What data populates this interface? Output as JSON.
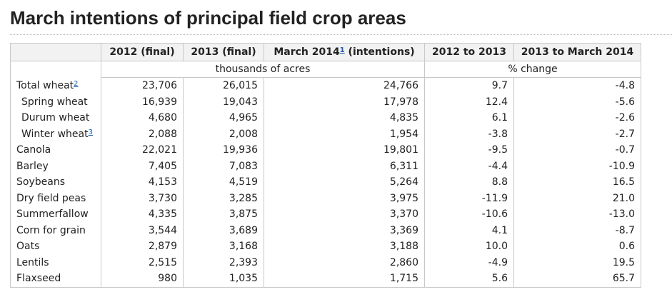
{
  "title": "March intentions of principal field crop areas",
  "columns": {
    "c2012": "2012 (final)",
    "c2013": "2013 (final)",
    "c2014_label": "March 2014",
    "c2014_note": "1",
    "c2014_suffix": " (intentions)",
    "c_change1": "2012 to 2013",
    "c_change2": "2013 to March 2014"
  },
  "units": {
    "acres": "thousands of acres",
    "pct": "% change"
  },
  "rows": [
    {
      "label": "Total wheat",
      "note": "2",
      "sub": false,
      "v2012": "23,706",
      "v2013": "26,015",
      "v2014": "24,766",
      "ch1": "9.7",
      "ch2": "-4.8"
    },
    {
      "label": "Spring wheat",
      "note": "",
      "sub": true,
      "v2012": "16,939",
      "v2013": "19,043",
      "v2014": "17,978",
      "ch1": "12.4",
      "ch2": "-5.6"
    },
    {
      "label": "Durum wheat",
      "note": "",
      "sub": true,
      "v2012": "4,680",
      "v2013": "4,965",
      "v2014": "4,835",
      "ch1": "6.1",
      "ch2": "-2.6"
    },
    {
      "label": "Winter wheat",
      "note": "3",
      "sub": true,
      "v2012": "2,088",
      "v2013": "2,008",
      "v2014": "1,954",
      "ch1": "-3.8",
      "ch2": "-2.7"
    },
    {
      "label": "Canola",
      "note": "",
      "sub": false,
      "v2012": "22,021",
      "v2013": "19,936",
      "v2014": "19,801",
      "ch1": "-9.5",
      "ch2": "-0.7"
    },
    {
      "label": "Barley",
      "note": "",
      "sub": false,
      "v2012": "7,405",
      "v2013": "7,083",
      "v2014": "6,311",
      "ch1": "-4.4",
      "ch2": "-10.9"
    },
    {
      "label": "Soybeans",
      "note": "",
      "sub": false,
      "v2012": "4,153",
      "v2013": "4,519",
      "v2014": "5,264",
      "ch1": "8.8",
      "ch2": "16.5"
    },
    {
      "label": "Dry field peas",
      "note": "",
      "sub": false,
      "v2012": "3,730",
      "v2013": "3,285",
      "v2014": "3,975",
      "ch1": "-11.9",
      "ch2": "21.0"
    },
    {
      "label": "Summerfallow",
      "note": "",
      "sub": false,
      "v2012": "4,335",
      "v2013": "3,875",
      "v2014": "3,370",
      "ch1": "-10.6",
      "ch2": "-13.0"
    },
    {
      "label": "Corn for grain",
      "note": "",
      "sub": false,
      "v2012": "3,544",
      "v2013": "3,689",
      "v2014": "3,369",
      "ch1": "4.1",
      "ch2": "-8.7"
    },
    {
      "label": "Oats",
      "note": "",
      "sub": false,
      "v2012": "2,879",
      "v2013": "3,168",
      "v2014": "3,188",
      "ch1": "10.0",
      "ch2": "0.6"
    },
    {
      "label": "Lentils",
      "note": "",
      "sub": false,
      "v2012": "2,515",
      "v2013": "2,393",
      "v2014": "2,860",
      "ch1": "-4.9",
      "ch2": "19.5"
    },
    {
      "label": "Flaxseed",
      "note": "",
      "sub": false,
      "v2012": "980",
      "v2013": "1,035",
      "v2014": "1,715",
      "ch1": "5.6",
      "ch2": "65.7"
    }
  ]
}
